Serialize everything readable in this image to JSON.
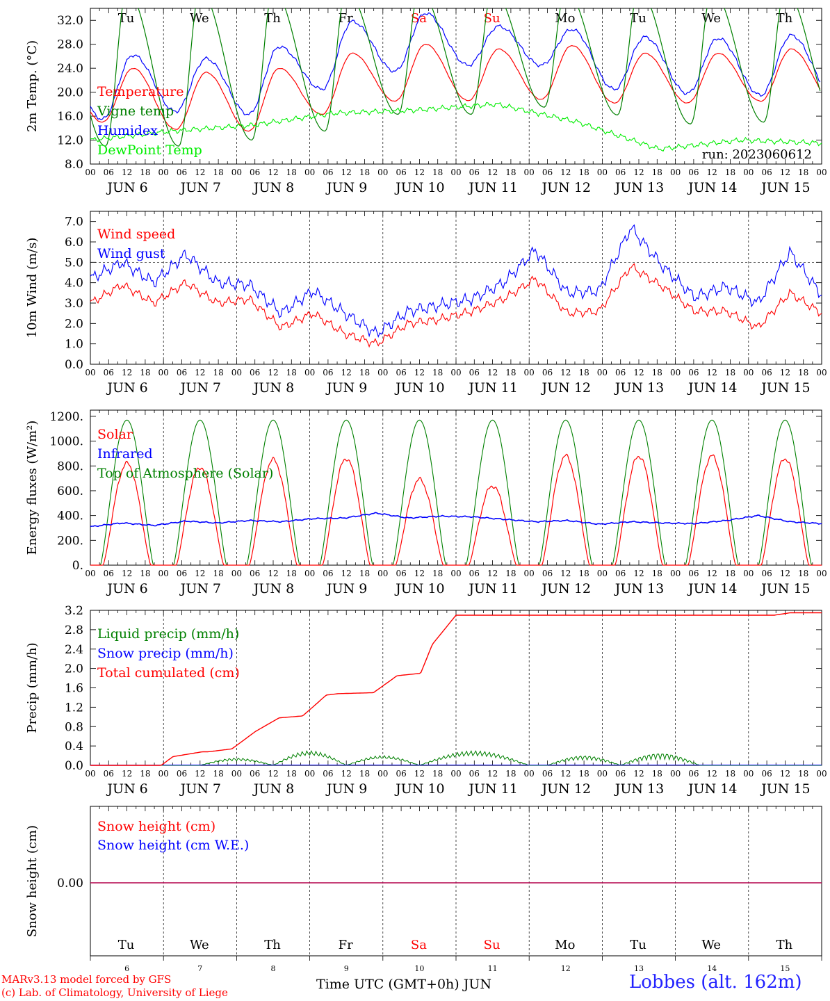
{
  "chart_data": [
    {
      "type": "line",
      "ylabel": "2m Temp. (°C)",
      "ylim": [
        8,
        34
      ],
      "yticks": [
        "8.0",
        "12.0",
        "16.0",
        "20.0",
        "24.0",
        "28.0",
        "32.0"
      ],
      "legend": [
        "Temperature",
        "Vigne temp",
        "Humidex",
        "DewPoint Temp"
      ],
      "run_label": "run: 2023060612",
      "series": [
        {
          "name": "Temperature",
          "color": "#ff0000",
          "min": [
            15.0,
            13.8,
            13.5,
            16.3,
            18.5,
            18.6,
            18.8,
            18.2,
            18.2,
            18.5
          ],
          "max": [
            24.0,
            23.3,
            24.0,
            26.5,
            28.0,
            27.2,
            27.8,
            26.5,
            26.5,
            27.2
          ]
        },
        {
          "name": "Vigne temp",
          "color": "#008000",
          "min": [
            11.0,
            11.0,
            12.0,
            13.5,
            16.3,
            16.3,
            17.5,
            16.2,
            14.7,
            15.0
          ],
          "max": [
            37.0,
            37.0,
            37.0,
            37.0,
            37.0,
            37.0,
            37.0,
            37.0,
            37.0,
            37.0
          ]
        },
        {
          "name": "Humidex",
          "color": "#0000ff",
          "min": [
            15.5,
            16.8,
            16.3,
            20.5,
            23.5,
            24.5,
            24.5,
            20.5,
            19.8,
            19.5
          ],
          "max": [
            26.2,
            25.6,
            27.6,
            31.8,
            33.2,
            31.0,
            30.5,
            29.2,
            29.0,
            29.5
          ]
        },
        {
          "name": "DewPoint Temp",
          "color": "#00ee00",
          "values": [
            12.0,
            13.5,
            14.5,
            16.5,
            17.0,
            18.0,
            15.0,
            10.5,
            12.0,
            11.5
          ]
        }
      ]
    },
    {
      "type": "line",
      "ylabel": "10m Wind (m/s)",
      "ylim": [
        0,
        7.5
      ],
      "yticks": [
        "0.0",
        "1.0",
        "2.0",
        "3.0",
        "4.0",
        "5.0",
        "6.0",
        "7.0"
      ],
      "legend": [
        "Wind speed",
        "Wind gust"
      ],
      "reference_line": 5.0,
      "series": [
        {
          "name": "Wind speed",
          "color": "#ff0000",
          "values": [
            3.0,
            3.9,
            3.0,
            4.0,
            3.0,
            3.2,
            1.8,
            2.5,
            1.5,
            1.0,
            2.0,
            2.2,
            2.6,
            3.2,
            4.2,
            2.5,
            2.6,
            4.8,
            3.8,
            2.6,
            2.6,
            1.8,
            3.5,
            2.5
          ]
        },
        {
          "name": "Wind gust",
          "color": "#0000ff",
          "values": [
            4.2,
            5.0,
            4.0,
            5.4,
            4.0,
            3.9,
            2.5,
            3.6,
            2.5,
            1.5,
            2.6,
            2.9,
            3.2,
            4.0,
            5.6,
            3.5,
            3.6,
            6.7,
            4.8,
            3.3,
            3.8,
            3.0,
            5.5,
            3.4
          ]
        }
      ]
    },
    {
      "type": "line",
      "ylabel": "Energy fluxes (W/m²)",
      "ylim": [
        0,
        1250
      ],
      "yticks": [
        "0.",
        "200.",
        "400.",
        "600.",
        "800.",
        "1000.",
        "1200."
      ],
      "legend": [
        "Solar",
        "Infrared",
        "Top of Atmosphere (Solar)"
      ],
      "series": [
        {
          "name": "Solar",
          "color": "#ff0000",
          "daily_peak": [
            820,
            790,
            850,
            860,
            690,
            640,
            880,
            880,
            880,
            860
          ]
        },
        {
          "name": "Infrared",
          "color": "#0000ff",
          "values": [
            310,
            340,
            320,
            355,
            340,
            360,
            350,
            375,
            380,
            420,
            380,
            395,
            390,
            370,
            350,
            360,
            330,
            350,
            340,
            335,
            360,
            400,
            350,
            335
          ]
        },
        {
          "name": "Top of Atmosphere (Solar)",
          "color": "#008000",
          "daily_peak": [
            1170,
            1170,
            1170,
            1170,
            1170,
            1170,
            1170,
            1170,
            1170,
            1170
          ]
        }
      ]
    },
    {
      "type": "line",
      "ylabel": "Precip (mm/h)",
      "ylim": [
        0,
        3.2
      ],
      "yticks": [
        "0.0",
        "0.4",
        "0.8",
        "1.2",
        "1.6",
        "2.0",
        "2.4",
        "2.8",
        "3.2"
      ],
      "legend": [
        "Liquid precip (mm/h)",
        "Snow precip (mm/h)",
        "Total cumulated (cm)"
      ],
      "series": [
        {
          "name": "Total cumulated (cm)",
          "color": "#ff0000",
          "x_hours": [
            0,
            36,
            42,
            57,
            60,
            72,
            84,
            96,
            108,
            120,
            126,
            144,
            156,
            168,
            174,
            186,
            216,
            348,
            356,
            372
          ],
          "values": [
            0,
            0.0,
            0.18,
            0.28,
            0.28,
            0.34,
            0.7,
            0.98,
            1.02,
            1.45,
            1.48,
            1.5,
            1.85,
            1.9,
            2.5,
            3.1,
            3.1,
            3.1,
            3.15,
            3.15
          ]
        },
        {
          "name": "Liquid precip (mm/h)",
          "color": "#008000",
          "peaks": [
            0.15,
            0.3,
            0.2,
            0.3,
            0.2,
            0.25,
            0.05
          ]
        },
        {
          "name": "Snow precip (mm/h)",
          "color": "#0000ff",
          "values": [
            0
          ]
        }
      ]
    },
    {
      "type": "line",
      "ylabel": "Snow height (cm)",
      "yticks": [
        "0.00"
      ],
      "legend": [
        "Snow height (cm)",
        "Snow height (cm W.E.)"
      ],
      "series": [
        {
          "name": "Snow height (cm)",
          "color": "#ff0000",
          "values": [
            0
          ]
        },
        {
          "name": "Snow height (cm W.E.)",
          "color": "#0000ff",
          "values": [
            0
          ]
        }
      ]
    }
  ],
  "xaxis": {
    "hour_ticks": [
      "00",
      "06",
      "12",
      "18"
    ],
    "end_tick": "00",
    "date_labels": [
      "JUN  6",
      "JUN  7",
      "JUN  8",
      "JUN  9",
      "JUN 10",
      "JUN 11",
      "JUN 12",
      "JUN 13",
      "JUN 14",
      "JUN 15"
    ],
    "weekdays": [
      "Tu",
      "We",
      "Th",
      "Fr",
      "Sa",
      "Su",
      "Mo",
      "Tu",
      "We",
      "Th"
    ],
    "weekend_color": "#ff0000",
    "day_numbers": [
      "6",
      "7",
      "8",
      "9",
      "10",
      "11",
      "12",
      "13",
      "14",
      "15"
    ]
  },
  "footer": {
    "credit_line1": "MARv3.13 model forced by GFS",
    "credit_line2": "(c) Lab. of Climatology, University of Liege",
    "axis_title": "Time UTC (GMT+0h)",
    "month": "JUN",
    "station": "Lobbes (alt. 162m)"
  }
}
